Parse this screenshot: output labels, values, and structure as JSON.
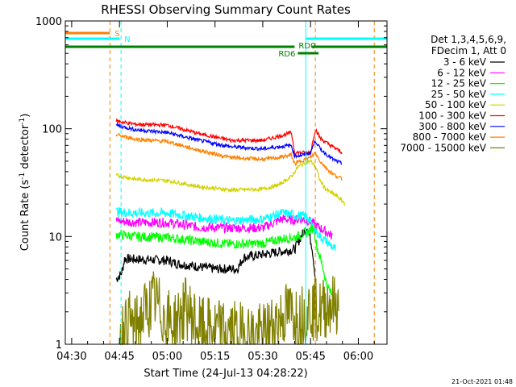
{
  "chart_data": {
    "type": "line",
    "title": "RHESSI Observing Summary Count Rates",
    "xlabel": "Start Time (24-Jul-13 04:28:22)",
    "ylabel_main": "Count Rate (s",
    "ylabel_sup1": "-1",
    "ylabel_mid": " detector",
    "ylabel_sup2": "-1",
    "ylabel_end": ")",
    "y_scale": "log",
    "ylim": [
      1,
      1000
    ],
    "xlim_min": [
      268,
      369
    ],
    "x_ticks": [
      {
        "label": "04:30",
        "min": 270
      },
      {
        "label": "04:45",
        "min": 285
      },
      {
        "label": "05:00",
        "min": 300
      },
      {
        "label": "05:15",
        "min": 315
      },
      {
        "label": "05:30",
        "min": 330
      },
      {
        "label": "05:45",
        "min": 345
      },
      {
        "label": "06:00",
        "min": 360
      }
    ],
    "y_ticks": [
      {
        "label": "1",
        "value": 1
      },
      {
        "label": "10",
        "value": 10
      },
      {
        "label": "100",
        "value": 100
      },
      {
        "label": "1000",
        "value": 1000
      }
    ],
    "legend_header": [
      "Det 1,3,4,5,6,9,",
      "FDecim 1, Att 0"
    ],
    "series": [
      {
        "name": "3 - 6 keV",
        "color": "#000000",
        "points": [
          [
            284,
            4
          ],
          [
            285.5,
            4.5
          ],
          [
            286,
            5
          ],
          [
            286.6,
            6.2
          ],
          [
            300,
            6
          ],
          [
            303,
            5.6
          ],
          [
            315,
            5
          ],
          [
            322,
            5
          ],
          [
            324,
            6.4
          ],
          [
            330,
            6.8
          ],
          [
            340,
            7.6
          ],
          [
            342,
            10
          ],
          [
            344,
            12.4
          ],
          [
            345.5,
            8
          ],
          [
            346.8,
            3.4
          ]
        ]
      },
      {
        "name": "6 - 12 keV",
        "color": "#ff00ff",
        "points": [
          [
            284,
            14
          ],
          [
            290,
            13.5
          ],
          [
            300,
            13.5
          ],
          [
            310,
            12.2
          ],
          [
            320,
            12
          ],
          [
            330,
            12
          ],
          [
            336,
            14.6
          ],
          [
            339,
            14.2
          ],
          [
            342,
            14.5
          ],
          [
            345,
            13.8
          ],
          [
            346,
            13
          ],
          [
            348,
            12
          ],
          [
            350,
            11
          ],
          [
            352,
            10
          ]
        ]
      },
      {
        "name": "12 - 25 keV",
        "color": "#00ff00",
        "points": [
          [
            284,
            10.5
          ],
          [
            290,
            10
          ],
          [
            300,
            9.8
          ],
          [
            310,
            9
          ],
          [
            320,
            8.5
          ],
          [
            330,
            8.6
          ],
          [
            335,
            9.4
          ],
          [
            340,
            9.8
          ],
          [
            344,
            11
          ],
          [
            346,
            12.2
          ],
          [
            347,
            8
          ],
          [
            349,
            5
          ],
          [
            350,
            3.6
          ],
          [
            353,
            2.4
          ]
        ]
      },
      {
        "name": "25 - 50 keV",
        "color": "#00ffff",
        "points": [
          [
            284,
            17
          ],
          [
            290,
            16.5
          ],
          [
            300,
            16.5
          ],
          [
            310,
            15
          ],
          [
            320,
            14
          ],
          [
            330,
            14.5
          ],
          [
            336,
            16.5
          ],
          [
            339,
            16
          ],
          [
            342,
            15.5
          ],
          [
            344,
            15.5
          ],
          [
            346,
            12
          ],
          [
            348,
            10
          ],
          [
            350,
            9
          ],
          [
            353,
            7.5
          ]
        ]
      },
      {
        "name": "50 - 100 keV",
        "color": "#d2d200",
        "points": [
          [
            284,
            37
          ],
          [
            290,
            34
          ],
          [
            300,
            33
          ],
          [
            310,
            29
          ],
          [
            320,
            27
          ],
          [
            330,
            27.5
          ],
          [
            335,
            30
          ],
          [
            337,
            33
          ],
          [
            339,
            36
          ],
          [
            341,
            44
          ],
          [
            343,
            48
          ],
          [
            345,
            50
          ],
          [
            346.5,
            45
          ],
          [
            348,
            33
          ],
          [
            350,
            27
          ],
          [
            353,
            24
          ],
          [
            356,
            20
          ]
        ]
      },
      {
        "name": "100 - 300 keV",
        "color": "#ff0000",
        "points": [
          [
            284,
            118
          ],
          [
            290,
            110
          ],
          [
            300,
            108
          ],
          [
            310,
            90
          ],
          [
            320,
            78
          ],
          [
            330,
            78
          ],
          [
            335,
            85
          ],
          [
            339,
            92
          ],
          [
            340,
            60
          ],
          [
            343,
            60
          ],
          [
            345,
            60
          ],
          [
            346.5,
            100
          ],
          [
            348,
            82
          ],
          [
            350,
            74
          ],
          [
            352,
            68
          ],
          [
            355,
            60
          ]
        ]
      },
      {
        "name": "300 - 800 keV",
        "color": "#0000ff",
        "points": [
          [
            284,
            108
          ],
          [
            290,
            98
          ],
          [
            300,
            92
          ],
          [
            310,
            78
          ],
          [
            320,
            68
          ],
          [
            330,
            65
          ],
          [
            335,
            68
          ],
          [
            339,
            70
          ],
          [
            340,
            56
          ],
          [
            343,
            57
          ],
          [
            345,
            60
          ],
          [
            346.5,
            78
          ],
          [
            348,
            65
          ],
          [
            350,
            58
          ],
          [
            352,
            52
          ],
          [
            355,
            47
          ]
        ]
      },
      {
        "name": "800 - 7000 keV",
        "color": "#ff8000",
        "points": [
          [
            284,
            88
          ],
          [
            290,
            80
          ],
          [
            300,
            76
          ],
          [
            310,
            63
          ],
          [
            320,
            54
          ],
          [
            330,
            52
          ],
          [
            335,
            54
          ],
          [
            339,
            57
          ],
          [
            340,
            47
          ],
          [
            343,
            52
          ],
          [
            345,
            54
          ],
          [
            346.5,
            60
          ],
          [
            348,
            50
          ],
          [
            350,
            43
          ],
          [
            352,
            38
          ],
          [
            355,
            34
          ]
        ]
      },
      {
        "name": "7000 - 15000 keV",
        "color": "#808000",
        "points": [
          [
            285,
            1.2
          ],
          [
            288,
            1.6
          ],
          [
            290,
            1.4
          ],
          [
            293,
            2
          ],
          [
            296,
            2.6
          ],
          [
            299,
            1.8
          ],
          [
            302,
            1.5
          ],
          [
            306,
            2.2
          ],
          [
            310,
            1.4
          ],
          [
            330,
            1.2
          ],
          [
            334,
            1.6
          ],
          [
            338,
            2
          ],
          [
            342,
            1.8
          ],
          [
            345,
            2.2
          ],
          [
            348,
            2
          ],
          [
            351,
            2.4
          ],
          [
            354,
            2.2
          ]
        ]
      }
    ],
    "attenuator_bar": {
      "label": "S",
      "color": "#ff8000",
      "from_min": 268,
      "to_min": 282
    },
    "night_bar": {
      "label": "N",
      "color": "#00ffff",
      "from_min": 268,
      "to_min": 285
    },
    "rd0_bar": {
      "label": "RD0",
      "color": "#008000"
    },
    "rd6_bar": {
      "label": "RD6",
      "color": "#008000"
    },
    "vlines": [
      {
        "min": 282,
        "color": "#ff8000",
        "style": "dashed"
      },
      {
        "min": 285.5,
        "color": "#00ffff",
        "style": "dashed"
      },
      {
        "min": 343.5,
        "color": "#00ffff",
        "style": "solid"
      },
      {
        "min": 346.5,
        "color": "#ff8000",
        "style": "dashed"
      },
      {
        "min": 365,
        "color": "#ff8000",
        "style": "dashed"
      }
    ],
    "timestamp": "21-Oct-2021 01:48"
  }
}
